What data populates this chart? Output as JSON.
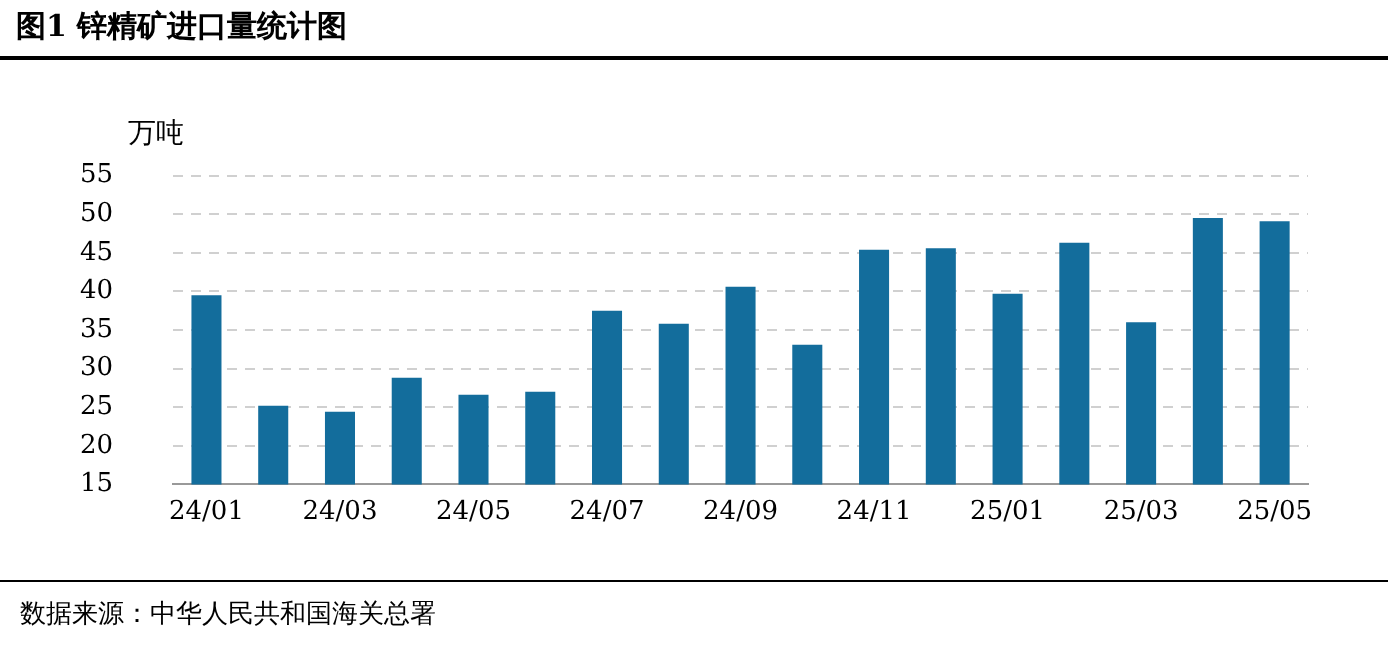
{
  "chart_data": {
    "type": "bar",
    "title": "图1 锌精矿进口量统计图",
    "ylabel": "万吨",
    "categories": [
      "24/01",
      null,
      "24/03",
      null,
      "24/05",
      null,
      "24/07",
      null,
      "24/09",
      null,
      "24/11",
      null,
      "25/01",
      null,
      "25/03",
      null,
      "25/05"
    ],
    "values": [
      39.5,
      25.2,
      24.4,
      28.8,
      26.6,
      27.0,
      37.5,
      35.8,
      40.6,
      33.1,
      45.4,
      45.6,
      39.7,
      46.3,
      36.0,
      49.5,
      49.1
    ],
    "color": "#136d9c",
    "ylim": [
      15,
      55
    ],
    "yticks": [
      15,
      20,
      25,
      30,
      35,
      40,
      45,
      50,
      55
    ],
    "grid": "y",
    "annotations": [
      "数据来源：中华人民共和国海关总署"
    ]
  }
}
